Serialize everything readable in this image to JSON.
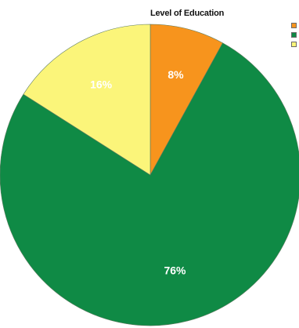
{
  "chart_data": {
    "type": "pie",
    "title": "Level of Education",
    "slices": [
      {
        "label": "8%",
        "value": 8,
        "color": "#f7941d"
      },
      {
        "label": "76%",
        "value": 76,
        "color": "#0f8a45"
      },
      {
        "label": "16%",
        "value": 16,
        "color": "#fbf57a"
      }
    ],
    "legend_position": "top-right",
    "start_angle_deg": 0,
    "direction": "clockwise"
  }
}
